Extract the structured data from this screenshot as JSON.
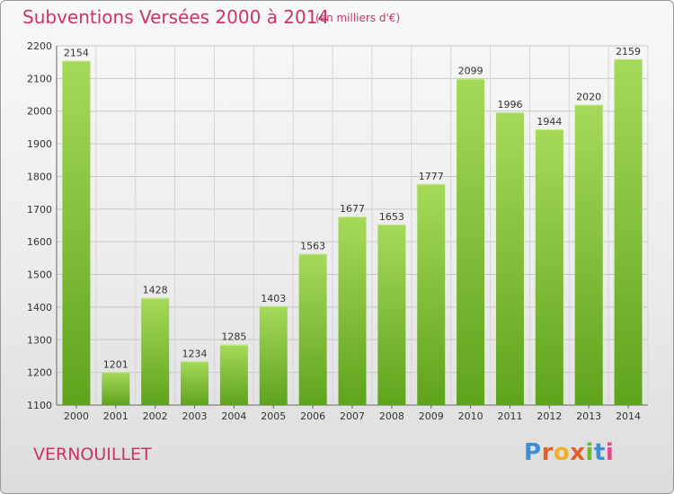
{
  "header": {
    "title": "Subventions Versées 2000 à 2014",
    "subtitle": "(en milliers d'€)"
  },
  "footer": {
    "commune": "VERNOUILLET",
    "logo_text": "Proxiti"
  },
  "colors": {
    "title": "#cc3366",
    "bar_light": "#a6d95a",
    "bar_dark": "#5fa31d"
  },
  "chart_data": {
    "type": "bar",
    "title": "Subventions Versées 2000 à 2014",
    "xlabel": "",
    "ylabel": "",
    "categories": [
      "2000",
      "2001",
      "2002",
      "2003",
      "2004",
      "2005",
      "2006",
      "2007",
      "2008",
      "2009",
      "2010",
      "2011",
      "2012",
      "2013",
      "2014"
    ],
    "values": [
      2154,
      1201,
      1428,
      1234,
      1285,
      1403,
      1563,
      1677,
      1653,
      1777,
      2099,
      1996,
      1944,
      2020,
      2159
    ],
    "ylim": [
      1100,
      2200
    ],
    "yticks": [
      1100,
      1200,
      1300,
      1400,
      1500,
      1600,
      1700,
      1800,
      1900,
      2000,
      2100,
      2200
    ],
    "grid": true,
    "legend": "none"
  }
}
